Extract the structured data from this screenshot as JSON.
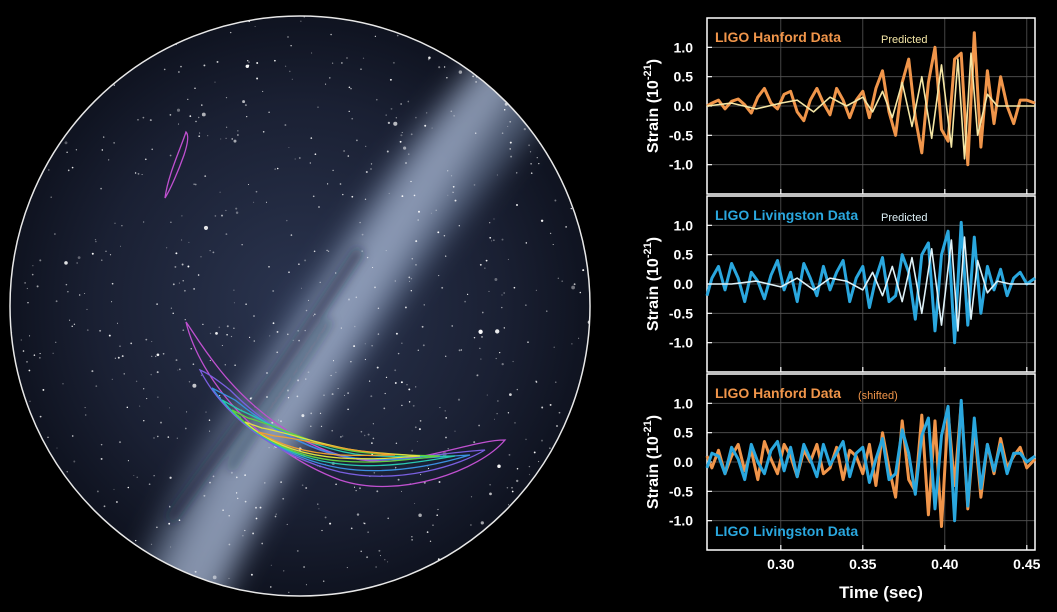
{
  "colors": {
    "hanford": "#f0954a",
    "livingston": "#2aa7de",
    "predicted_hanford": "#f4e6a6",
    "predicted_livingston": "#dff2f8",
    "frame": "#ffffff",
    "grid": "#555555"
  },
  "sky_map": {
    "contour_colors": [
      "#c050d0",
      "#7a5fe0",
      "#3a8fe0",
      "#28c8b0",
      "#60d040",
      "#e0e040",
      "#f0a030"
    ]
  },
  "chart_data": [
    {
      "type": "line",
      "xlim": [
        0.255,
        0.455
      ],
      "ylim": [
        -1.5,
        1.5
      ],
      "yticks": [
        -1.0,
        -0.5,
        0.0,
        0.5,
        1.0
      ],
      "ytick_labels": [
        "-1.0",
        "-0.5",
        "0.0",
        "0.5",
        "1.0"
      ],
      "ylabel_main": "Strain (10",
      "ylabel_exp": "-21",
      "ylabel_end": ")",
      "label_main": "LIGO Hanford Data",
      "label_predicted": "Predicted",
      "series": [
        {
          "name": "LIGO Hanford Data",
          "role": "data",
          "x": [
            0.255,
            0.258,
            0.262,
            0.266,
            0.27,
            0.274,
            0.278,
            0.282,
            0.286,
            0.29,
            0.294,
            0.298,
            0.302,
            0.306,
            0.31,
            0.314,
            0.318,
            0.322,
            0.326,
            0.33,
            0.334,
            0.338,
            0.342,
            0.346,
            0.35,
            0.354,
            0.358,
            0.362,
            0.366,
            0.37,
            0.374,
            0.378,
            0.382,
            0.386,
            0.39,
            0.394,
            0.398,
            0.402,
            0.406,
            0.41,
            0.414,
            0.418,
            0.422,
            0.426,
            0.43,
            0.434,
            0.438,
            0.442,
            0.446,
            0.45,
            0.455
          ],
          "values": [
            0.0,
            0.05,
            0.1,
            -0.05,
            0.08,
            0.12,
            0.02,
            -0.12,
            0.15,
            0.3,
            0.05,
            -0.05,
            0.2,
            0.25,
            -0.1,
            -0.25,
            0.1,
            0.3,
            0.05,
            -0.15,
            0.3,
            0.1,
            -0.2,
            0.1,
            0.25,
            -0.2,
            0.3,
            0.6,
            -0.1,
            -0.5,
            0.4,
            0.8,
            -0.2,
            -0.8,
            0.4,
            1.0,
            -0.4,
            -0.6,
            0.8,
            0.9,
            -1.0,
            1.25,
            -0.7,
            0.6,
            -0.3,
            0.5,
            0.0,
            -0.3,
            0.1,
            0.1,
            0.05
          ]
        },
        {
          "name": "Predicted",
          "role": "predicted",
          "x": [
            0.255,
            0.27,
            0.285,
            0.3,
            0.31,
            0.32,
            0.33,
            0.34,
            0.35,
            0.356,
            0.362,
            0.368,
            0.374,
            0.38,
            0.386,
            0.392,
            0.398,
            0.404,
            0.408,
            0.412,
            0.416,
            0.42,
            0.426,
            0.432,
            0.44,
            0.455
          ],
          "values": [
            0.0,
            0.05,
            -0.05,
            0.05,
            0.1,
            -0.1,
            0.15,
            0.0,
            0.15,
            -0.1,
            0.25,
            -0.2,
            0.4,
            -0.35,
            0.5,
            -0.55,
            0.7,
            -0.7,
            0.8,
            -0.9,
            0.9,
            -0.5,
            0.2,
            0.0,
            0.0,
            0.0
          ]
        }
      ]
    },
    {
      "type": "line",
      "xlim": [
        0.255,
        0.455
      ],
      "ylim": [
        -1.5,
        1.5
      ],
      "yticks": [
        -1.0,
        -0.5,
        0.0,
        0.5,
        1.0
      ],
      "ytick_labels": [
        "-1.0",
        "-0.5",
        "0.0",
        "0.5",
        "1.0"
      ],
      "ylabel_main": "Strain (10",
      "ylabel_exp": "-21",
      "ylabel_end": ")",
      "label_main": "LIGO Livingston Data",
      "label_predicted": "Predicted",
      "series": [
        {
          "name": "LIGO Livingston Data",
          "role": "data",
          "x": [
            0.255,
            0.258,
            0.262,
            0.266,
            0.27,
            0.274,
            0.278,
            0.282,
            0.286,
            0.29,
            0.294,
            0.298,
            0.302,
            0.306,
            0.31,
            0.314,
            0.318,
            0.322,
            0.326,
            0.33,
            0.334,
            0.338,
            0.342,
            0.346,
            0.35,
            0.354,
            0.358,
            0.362,
            0.366,
            0.37,
            0.374,
            0.378,
            0.382,
            0.386,
            0.39,
            0.394,
            0.398,
            0.402,
            0.406,
            0.41,
            0.414,
            0.418,
            0.422,
            0.426,
            0.43,
            0.434,
            0.438,
            0.442,
            0.446,
            0.45,
            0.455
          ],
          "values": [
            -0.2,
            0.1,
            0.3,
            -0.1,
            0.35,
            0.1,
            -0.3,
            0.2,
            0.05,
            -0.25,
            0.15,
            0.4,
            -0.1,
            0.2,
            -0.3,
            0.35,
            0.1,
            -0.2,
            0.3,
            -0.1,
            0.2,
            0.4,
            -0.3,
            0.1,
            0.3,
            -0.4,
            0.1,
            0.45,
            -0.3,
            -0.2,
            0.5,
            0.2,
            -0.6,
            0.5,
            0.7,
            -0.8,
            0.5,
            0.9,
            -1.0,
            1.05,
            -0.7,
            0.8,
            -0.5,
            0.3,
            -0.1,
            0.25,
            -0.2,
            0.1,
            0.2,
            0.0,
            0.1
          ]
        },
        {
          "name": "Predicted",
          "role": "predicted",
          "x": [
            0.255,
            0.27,
            0.285,
            0.3,
            0.31,
            0.32,
            0.33,
            0.34,
            0.35,
            0.356,
            0.362,
            0.368,
            0.374,
            0.38,
            0.386,
            0.392,
            0.398,
            0.404,
            0.408,
            0.412,
            0.416,
            0.42,
            0.426,
            0.432,
            0.44,
            0.455
          ],
          "values": [
            0.0,
            0.0,
            0.05,
            -0.05,
            0.1,
            -0.1,
            0.1,
            0.05,
            -0.1,
            0.2,
            -0.2,
            0.3,
            -0.3,
            0.45,
            -0.5,
            0.6,
            -0.7,
            0.75,
            -0.8,
            0.8,
            -0.6,
            0.4,
            -0.15,
            0.05,
            0.0,
            0.0
          ]
        }
      ]
    },
    {
      "type": "line",
      "xlim": [
        0.255,
        0.455
      ],
      "ylim": [
        -1.5,
        1.5
      ],
      "yticks": [
        -1.0,
        -0.5,
        0.0,
        0.5,
        1.0
      ],
      "ytick_labels": [
        "-1.0",
        "-0.5",
        "0.0",
        "0.5",
        "1.0"
      ],
      "xticks": [
        0.3,
        0.35,
        0.4,
        0.45
      ],
      "xtick_labels": [
        "0.30",
        "0.35",
        "0.40",
        "0.45"
      ],
      "xlabel": "Time (sec)",
      "ylabel_main": "Strain (10",
      "ylabel_exp": "-21",
      "ylabel_end": ")",
      "label_main": "LIGO Hanford Data",
      "label_shifted": "(shifted)",
      "label_bottom": "LIGO Livingston Data",
      "series": [
        {
          "name": "LIGO Hanford Data",
          "role": "data",
          "x": [
            0.255,
            0.258,
            0.262,
            0.266,
            0.27,
            0.274,
            0.278,
            0.282,
            0.286,
            0.29,
            0.294,
            0.298,
            0.302,
            0.306,
            0.31,
            0.314,
            0.318,
            0.322,
            0.326,
            0.33,
            0.334,
            0.338,
            0.342,
            0.346,
            0.35,
            0.354,
            0.358,
            0.362,
            0.366,
            0.37,
            0.374,
            0.378,
            0.382,
            0.386,
            0.39,
            0.394,
            0.398,
            0.402,
            0.406,
            0.41,
            0.414,
            0.418,
            0.422,
            0.426,
            0.43,
            0.434,
            0.438,
            0.442,
            0.446,
            0.45,
            0.455
          ],
          "values": [
            0.1,
            -0.1,
            0.2,
            -0.2,
            0.1,
            0.3,
            -0.15,
            0.2,
            -0.3,
            0.35,
            0.05,
            -0.2,
            0.3,
            0.1,
            -0.25,
            0.2,
            0.0,
            0.3,
            -0.2,
            -0.1,
            0.25,
            -0.3,
            0.2,
            0.1,
            -0.2,
            0.3,
            -0.4,
            0.5,
            -0.1,
            -0.6,
            0.7,
            -0.3,
            -0.5,
            0.8,
            -0.9,
            0.7,
            -1.1,
            0.85,
            -0.4,
            1.0,
            -0.8,
            0.6,
            -0.6,
            0.3,
            -0.2,
            0.4,
            -0.1,
            0.1,
            0.25,
            -0.1,
            0.05
          ]
        },
        {
          "name": "LIGO Livingston Data",
          "role": "data2",
          "x": [
            0.255,
            0.258,
            0.262,
            0.266,
            0.27,
            0.274,
            0.278,
            0.282,
            0.286,
            0.29,
            0.294,
            0.298,
            0.302,
            0.306,
            0.31,
            0.314,
            0.318,
            0.322,
            0.326,
            0.33,
            0.334,
            0.338,
            0.342,
            0.346,
            0.35,
            0.354,
            0.358,
            0.362,
            0.366,
            0.37,
            0.374,
            0.378,
            0.382,
            0.386,
            0.39,
            0.394,
            0.398,
            0.402,
            0.406,
            0.41,
            0.414,
            0.418,
            0.422,
            0.426,
            0.43,
            0.434,
            0.438,
            0.442,
            0.446,
            0.45,
            0.455
          ],
          "values": [
            -0.1,
            0.15,
            0.1,
            -0.2,
            0.25,
            0.05,
            -0.3,
            0.3,
            0.0,
            -0.2,
            0.2,
            0.35,
            -0.15,
            0.25,
            -0.25,
            0.3,
            0.05,
            -0.25,
            0.3,
            -0.05,
            0.15,
            0.35,
            -0.25,
            0.15,
            0.25,
            -0.35,
            0.05,
            0.4,
            -0.3,
            -0.2,
            0.55,
            0.15,
            -0.55,
            0.45,
            0.75,
            -0.8,
            0.45,
            0.95,
            -1.0,
            1.05,
            -0.75,
            0.75,
            -0.45,
            0.3,
            -0.15,
            0.3,
            -0.2,
            0.15,
            0.15,
            0.0,
            0.1
          ]
        }
      ]
    }
  ]
}
